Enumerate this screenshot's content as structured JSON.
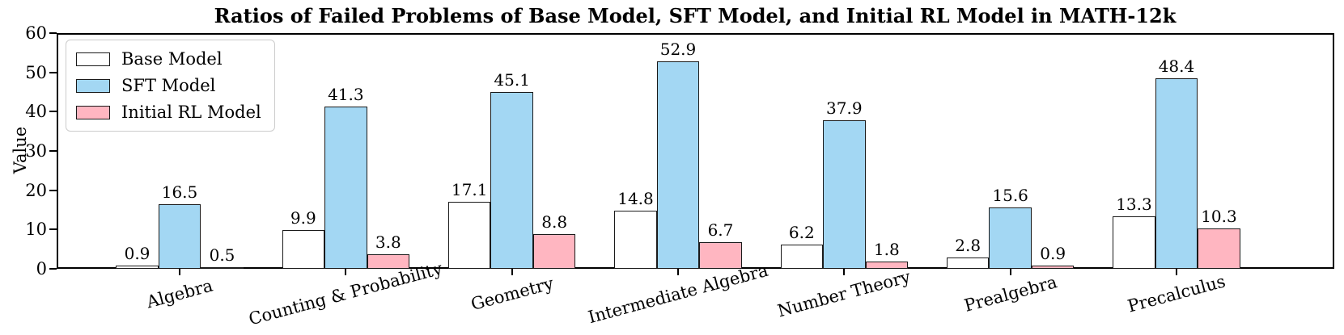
{
  "chart_data": {
    "type": "bar",
    "title": "Ratios of Failed Problems of Base Model, SFT Model, and Initial RL Model in MATH-12k",
    "xlabel": "",
    "ylabel": "Value",
    "ylim": [
      0,
      60
    ],
    "yticks": [
      0,
      10,
      20,
      30,
      40,
      50,
      60
    ],
    "grid": false,
    "legend_position": "upper left",
    "background_color": "#ffffff",
    "bar_edge_color": "#1a1a1a",
    "categories": [
      "Algebra",
      "Counting & Probability",
      "Geometry",
      "Intermediate Algebra",
      "Number Theory",
      "Prealgebra",
      "Precalculus"
    ],
    "series": [
      {
        "name": "Base Model",
        "color": "#ffffff",
        "values": [
          0.9,
          9.9,
          17.1,
          14.8,
          6.2,
          2.8,
          13.3
        ]
      },
      {
        "name": "SFT Model",
        "color": "#a3d7f3",
        "values": [
          16.5,
          41.3,
          45.1,
          52.9,
          37.9,
          15.6,
          48.4
        ]
      },
      {
        "name": "Initial RL Model",
        "color": "#ffb6c1",
        "values": [
          0.5,
          3.8,
          8.8,
          6.7,
          1.8,
          0.9,
          10.3
        ]
      }
    ]
  }
}
